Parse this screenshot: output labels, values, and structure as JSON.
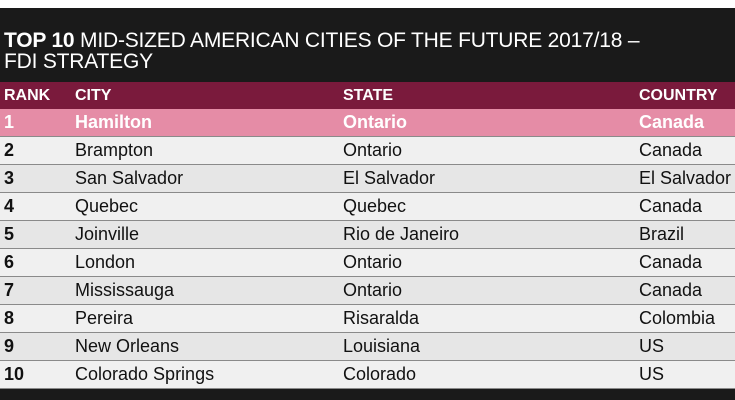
{
  "title": {
    "bold_part": "TOP 10",
    "rest": "MID-SIZED AMERICAN CITIES OF THE FUTURE 2017/18 –",
    "line2": "FDI STRATEGY"
  },
  "table": {
    "columns": [
      "RANK",
      "CITY",
      "STATE",
      "COUNTRY"
    ],
    "rows": [
      {
        "rank": "1",
        "city": "Hamilton",
        "state": "Ontario",
        "country": "Canada"
      },
      {
        "rank": "2",
        "city": "Brampton",
        "state": "Ontario",
        "country": "Canada"
      },
      {
        "rank": "3",
        "city": "San Salvador",
        "state": "El Salvador",
        "country": "El Salvador"
      },
      {
        "rank": "4",
        "city": "Quebec",
        "state": "Quebec",
        "country": "Canada"
      },
      {
        "rank": "5",
        "city": "Joinville",
        "state": "Rio de Janeiro",
        "country": "Brazil"
      },
      {
        "rank": "6",
        "city": "London",
        "state": "Ontario",
        "country": "Canada"
      },
      {
        "rank": "7",
        "city": "Mississauga",
        "state": "Ontario",
        "country": "Canada"
      },
      {
        "rank": "8",
        "city": "Pereira",
        "state": "Risaralda",
        "country": "Colombia"
      },
      {
        "rank": "9",
        "city": "New Orleans",
        "state": "Louisiana",
        "country": "US"
      },
      {
        "rank": "10",
        "city": "Colorado Springs",
        "state": "Colorado",
        "country": "US"
      }
    ]
  },
  "colors": {
    "background": "#1a1a1a",
    "header": "#7a1a3c",
    "highlight_row": "#e58ca6",
    "row": "#f0f0f0",
    "row_alt": "#e6e6e6"
  }
}
